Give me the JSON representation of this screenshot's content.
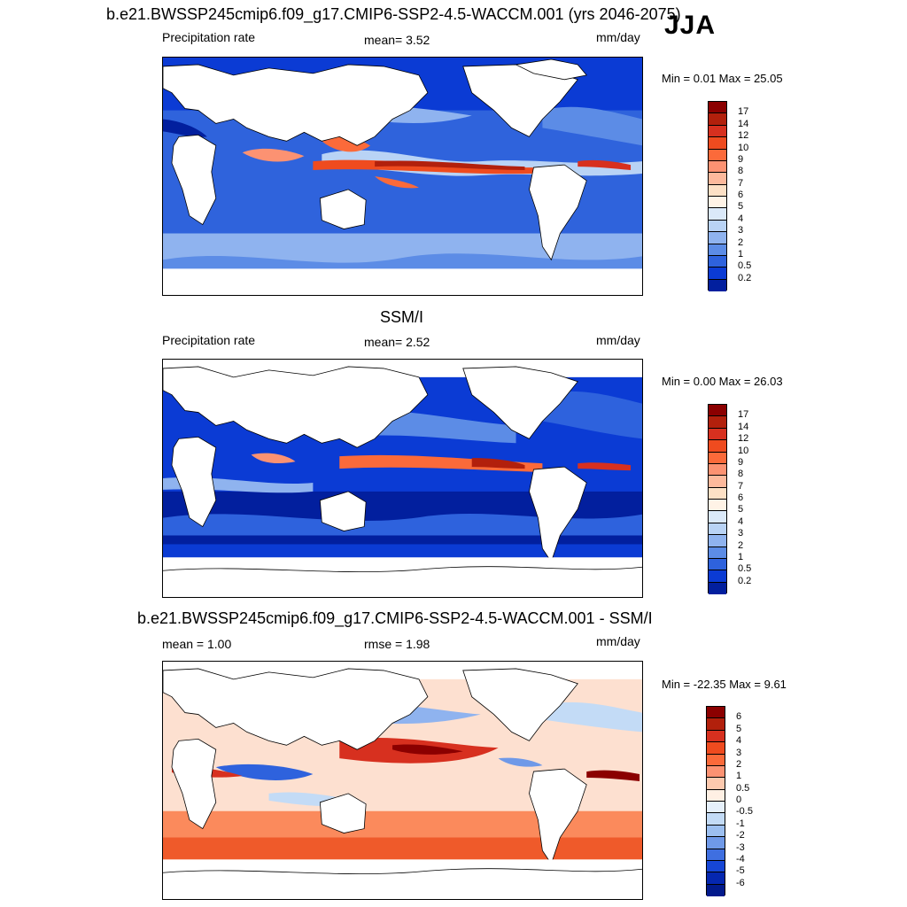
{
  "season": "JJA",
  "panels": [
    {
      "title": "b.e21.BWSSP245cmip6.f09_g17.CMIP6-SSP2-4.5-WACCM.001 (yrs 2046-2075)",
      "left_label": "Precipitation rate",
      "mid_label": "mean=   3.52",
      "units": "mm/day",
      "minmax": "Min =   0.01 Max =  25.05",
      "ticks": [
        "17",
        "14",
        "12",
        "10",
        "9",
        "8",
        "7",
        "6",
        "5",
        "4",
        "3",
        "2",
        "1",
        "0.5",
        "0.2"
      ],
      "colors": [
        "#8b0000",
        "#b2200c",
        "#d7301f",
        "#ef4b1f",
        "#fb6a3a",
        "#fc9272",
        "#fdb99c",
        "#fde0c5",
        "#fff3e6",
        "#dbe9f9",
        "#b9d3f5",
        "#8fb3ef",
        "#5c8ce6",
        "#2e62dd",
        "#0b3bd4",
        "#021f9e"
      ]
    },
    {
      "title": "SSM/I",
      "left_label": "Precipitation rate",
      "mid_label": "mean=   2.52",
      "units": "mm/day",
      "minmax": "Min =   0.00 Max =  26.03",
      "ticks": [
        "17",
        "14",
        "12",
        "10",
        "9",
        "8",
        "7",
        "6",
        "5",
        "4",
        "3",
        "2",
        "1",
        "0.5",
        "0.2"
      ],
      "colors": [
        "#8b0000",
        "#b2200c",
        "#d7301f",
        "#ef4b1f",
        "#fb6a3a",
        "#fc9272",
        "#fdb99c",
        "#fde0c5",
        "#fff3e6",
        "#dbe9f9",
        "#b9d3f5",
        "#8fb3ef",
        "#5c8ce6",
        "#2e62dd",
        "#0b3bd4",
        "#021f9e"
      ]
    },
    {
      "title": "b.e21.BWSSP245cmip6.f09_g17.CMIP6-SSP2-4.5-WACCM.001 - SSM/I",
      "left_label": "mean =   1.00",
      "mid_label": "rmse =   1.98",
      "units": "mm/day",
      "minmax": "Min = -22.35 Max =   9.61",
      "ticks": [
        "6",
        "5",
        "4",
        "3",
        "2",
        "1",
        "0.5",
        "0",
        "-0.5",
        "-1",
        "-2",
        "-3",
        "-4",
        "-5",
        "-6"
      ],
      "colors": [
        "#8b0000",
        "#b2200c",
        "#d7301f",
        "#ef4b1f",
        "#fb6a3a",
        "#fc9272",
        "#fdc9ae",
        "#fff0e4",
        "#e6f0fb",
        "#c3dbf6",
        "#9cbff0",
        "#6f99e8",
        "#3f6fe0",
        "#1646d6",
        "#0527b0",
        "#021a8c"
      ]
    }
  ]
}
